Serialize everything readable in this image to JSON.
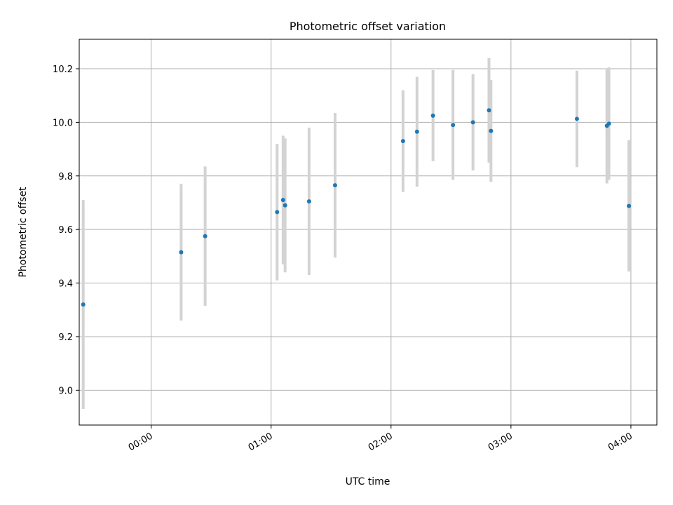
{
  "chart_data": {
    "type": "scatter",
    "title": "Photometric offset variation",
    "xlabel": "UTC time",
    "ylabel": "Photometric offset",
    "xlim": [
      "23:24",
      "04:13"
    ],
    "ylim": [
      8.87,
      10.31
    ],
    "grid": true,
    "x_ticks": [
      "00:00",
      "01:00",
      "02:00",
      "03:00",
      "04:00"
    ],
    "y_ticks": [
      9.0,
      9.2,
      9.4,
      9.6,
      9.8,
      10.0,
      10.2
    ],
    "y_tick_labels": [
      "9.0",
      "9.2",
      "9.4",
      "9.6",
      "9.8",
      "10.0",
      "10.2"
    ],
    "colors": {
      "marker": "#1f77b4",
      "errorbar": "#d3d3d3"
    },
    "points": [
      {
        "x": "23:26",
        "y": 9.32,
        "y_err": 0.39
      },
      {
        "x": "00:15",
        "y": 9.515,
        "y_err": 0.255
      },
      {
        "x": "00:27",
        "y": 9.575,
        "y_err": 0.26
      },
      {
        "x": "01:03",
        "y": 9.665,
        "y_err": 0.255
      },
      {
        "x": "01:06",
        "y": 9.71,
        "y_err": 0.24
      },
      {
        "x": "01:07",
        "y": 9.69,
        "y_err": 0.25
      },
      {
        "x": "01:19",
        "y": 9.705,
        "y_err": 0.275
      },
      {
        "x": "01:32",
        "y": 9.765,
        "y_err": 0.27
      },
      {
        "x": "02:06",
        "y": 9.93,
        "y_err": 0.19
      },
      {
        "x": "02:13",
        "y": 9.965,
        "y_err": 0.205
      },
      {
        "x": "02:21",
        "y": 10.025,
        "y_err": 0.17
      },
      {
        "x": "02:31",
        "y": 9.99,
        "y_err": 0.205
      },
      {
        "x": "02:41",
        "y": 10.0,
        "y_err": 0.18
      },
      {
        "x": "02:49",
        "y": 10.045,
        "y_err": 0.195
      },
      {
        "x": "02:50",
        "y": 9.968,
        "y_err": 0.19
      },
      {
        "x": "03:33",
        "y": 10.013,
        "y_err": 0.18
      },
      {
        "x": "03:48",
        "y": 9.987,
        "y_err": 0.215
      },
      {
        "x": "03:49",
        "y": 9.995,
        "y_err": 0.21
      },
      {
        "x": "03:59",
        "y": 9.688,
        "y_err": 0.245
      }
    ]
  }
}
